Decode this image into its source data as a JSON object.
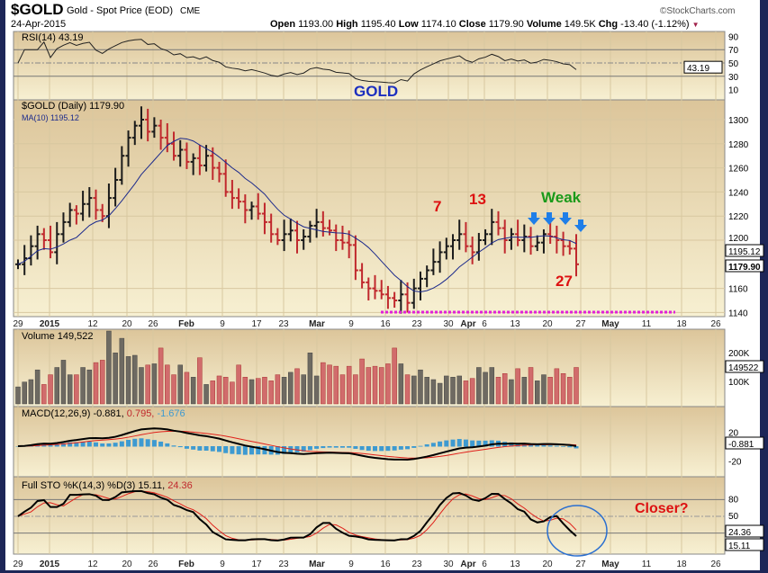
{
  "header": {
    "symbol": "$GOLD",
    "name": "Gold - Spot Price (EOD)",
    "exchange": "CME",
    "date": "24-Apr-2015",
    "brand": "©StockCharts.com",
    "quote": [
      {
        "k": "Open",
        "v": "1193.00"
      },
      {
        "k": "High",
        "v": "1195.40"
      },
      {
        "k": "Low",
        "v": "1174.10"
      },
      {
        "k": "Close",
        "v": "1179.90"
      },
      {
        "k": "Volume",
        "v": "149.5K"
      },
      {
        "k": "Chg",
        "v": "-13.40 (-1.12%)"
      }
    ]
  },
  "chart_data": {
    "type": "line",
    "title": "$GOLD Gold - Spot Price (EOD)",
    "panels": {
      "rsi": {
        "label": "RSI(14) 43.19",
        "ticks": [
          "90",
          "70",
          "50",
          "30",
          "10"
        ],
        "last": "43.19",
        "ylim": [
          0,
          100
        ]
      },
      "price": {
        "label": "$GOLD (Daily) 1179.90",
        "ma_label": "MA(10) 1195.12",
        "ticks": [
          "1300",
          "1280",
          "1260",
          "1240",
          "1220",
          "1200",
          "1160",
          "1140"
        ],
        "last_close": "1179.90",
        "last_ma": "1195.12",
        "ylim": [
          1136,
          1310
        ]
      },
      "volume": {
        "label": "Volume 149,522",
        "ticks": [
          "200K",
          "100K"
        ],
        "last": "149522"
      },
      "macd": {
        "label": "MACD(12,26,9) -0.881,",
        "signal": "0.795,",
        "hist": "-1.676",
        "ticks": [
          "20",
          "-20"
        ],
        "last": "-0.881"
      },
      "sto": {
        "label": "Full STO %K(14,3) %D(3) 15.11,",
        "d": "24.36",
        "ticks": [
          "80",
          "50"
        ],
        "last_k": "15.11",
        "last_d": "24.36"
      }
    },
    "x_ticks": [
      "29",
      "2015",
      "12",
      "20",
      "26",
      "Feb",
      "9",
      "17",
      "23",
      "Mar",
      "9",
      "16",
      "23",
      "30",
      "Apr",
      "6",
      "13",
      "20",
      "27",
      "May",
      "11",
      "18",
      "26"
    ],
    "closes": [
      1180,
      1185,
      1195,
      1205,
      1200,
      1190,
      1205,
      1215,
      1225,
      1222,
      1230,
      1235,
      1225,
      1220,
      1235,
      1250,
      1270,
      1285,
      1295,
      1300,
      1290,
      1295,
      1285,
      1280,
      1270,
      1275,
      1265,
      1268,
      1262,
      1270,
      1260,
      1255,
      1240,
      1235,
      1232,
      1225,
      1228,
      1222,
      1215,
      1205,
      1200,
      1205,
      1208,
      1200,
      1203,
      1212,
      1215,
      1210,
      1208,
      1200,
      1198,
      1196,
      1175,
      1165,
      1160,
      1158,
      1155,
      1152,
      1150,
      1155,
      1148,
      1160,
      1168,
      1175,
      1182,
      1190,
      1195,
      1200,
      1205,
      1195,
      1190,
      1200,
      1205,
      1215,
      1210,
      1200,
      1205,
      1200,
      1203,
      1195,
      1198,
      1205,
      1203,
      1200,
      1195,
      1193,
      1180
    ],
    "volumes_k": [
      70,
      90,
      100,
      140,
      80,
      120,
      150,
      180,
      120,
      120,
      150,
      140,
      170,
      180,
      300,
      210,
      270,
      195,
      200,
      150,
      160,
      165,
      230,
      160,
      120,
      160,
      130,
      110,
      190,
      80,
      95,
      115,
      110,
      90,
      160,
      110,
      100,
      105,
      110,
      95,
      120,
      110,
      130,
      145,
      120,
      210,
      115,
      170,
      160,
      155,
      120,
      155,
      120,
      185,
      150,
      155,
      150,
      165,
      230,
      165,
      120,
      115,
      140,
      110,
      100,
      85,
      115,
      110,
      115,
      95,
      105,
      150,
      130,
      150,
      110,
      125,
      100,
      145,
      110,
      150,
      95,
      120,
      110,
      145,
      125,
      110,
      150
    ]
  },
  "annotations": {
    "gold": "GOLD",
    "seven": "7",
    "thirteen": "13",
    "weak": "Weak",
    "twentyseven": "27",
    "closer": "Closer?"
  },
  "colors": {
    "up": "#1a1a1a",
    "down": "#c0282d",
    "ma": "#1c2a8c",
    "macd_hist": "#3d9ad1",
    "arrow": "#1f7ee8",
    "dotted": "#e020d8"
  }
}
